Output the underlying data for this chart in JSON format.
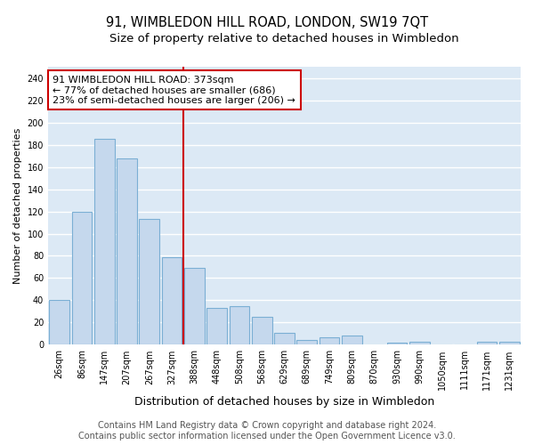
{
  "title": "91, WIMBLEDON HILL ROAD, LONDON, SW19 7QT",
  "subtitle": "Size of property relative to detached houses in Wimbledon",
  "xlabel": "Distribution of detached houses by size in Wimbledon",
  "ylabel": "Number of detached properties",
  "bar_labels": [
    "26sqm",
    "86sqm",
    "147sqm",
    "207sqm",
    "267sqm",
    "327sqm",
    "388sqm",
    "448sqm",
    "508sqm",
    "568sqm",
    "629sqm",
    "689sqm",
    "749sqm",
    "809sqm",
    "870sqm",
    "930sqm",
    "990sqm",
    "1050sqm",
    "1111sqm",
    "1171sqm",
    "1231sqm"
  ],
  "bar_values": [
    40,
    120,
    185,
    168,
    113,
    79,
    69,
    33,
    35,
    25,
    11,
    4,
    7,
    8,
    0,
    2,
    3,
    0,
    0,
    3,
    3
  ],
  "bar_color": "#c5d8ed",
  "bar_edge_color": "#7bafd4",
  "vline_index": 6,
  "vline_color": "#cc0000",
  "annotation_line1": "91 WIMBLEDON HILL ROAD: 373sqm",
  "annotation_line2": "← 77% of detached houses are smaller (686)",
  "annotation_line3": "23% of semi-detached houses are larger (206) →",
  "annotation_box_color": "#ffffff",
  "annotation_box_edge_color": "#cc0000",
  "ylim": [
    0,
    250
  ],
  "yticks": [
    0,
    20,
    40,
    60,
    80,
    100,
    120,
    140,
    160,
    180,
    200,
    220,
    240
  ],
  "footer_line1": "Contains HM Land Registry data © Crown copyright and database right 2024.",
  "footer_line2": "Contains public sector information licensed under the Open Government Licence v3.0.",
  "fig_background_color": "#ffffff",
  "plot_background_color": "#dce9f5",
  "grid_color": "#ffffff",
  "title_fontsize": 10.5,
  "subtitle_fontsize": 9.5,
  "xlabel_fontsize": 9,
  "ylabel_fontsize": 8,
  "tick_fontsize": 7,
  "annotation_fontsize": 8,
  "footer_fontsize": 7
}
